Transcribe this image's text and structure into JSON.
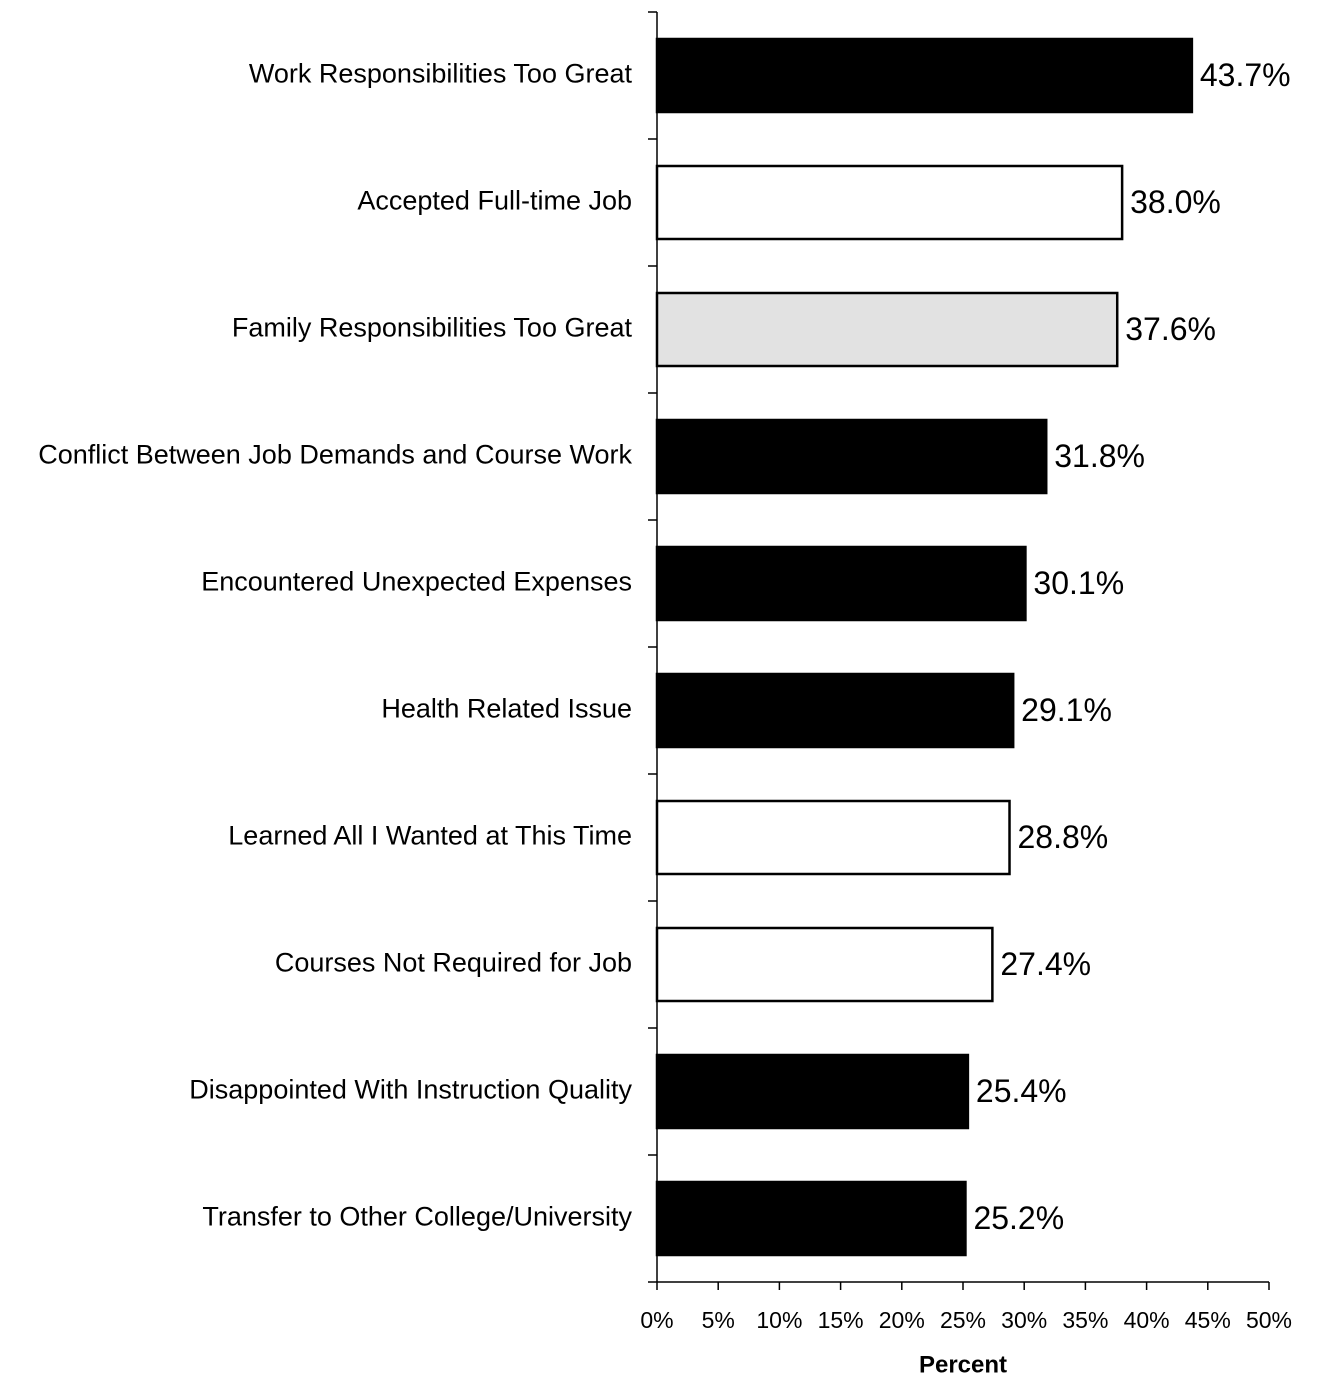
{
  "chart_data": {
    "type": "hbar",
    "categories": [
      "Work Responsibilities Too Great",
      "Accepted Full-time Job",
      "Family Responsibilities Too Great",
      "Conflict Between Job Demands and Course Work",
      "Encountered Unexpected Expenses",
      "Health Related Issue",
      "Learned All I Wanted at This Time",
      "Courses Not Required for Job",
      "Disappointed With Instruction Quality",
      "Transfer to Other College/University"
    ],
    "values": [
      43.7,
      38.0,
      37.6,
      31.8,
      30.1,
      29.1,
      28.8,
      27.4,
      25.4,
      25.2
    ],
    "value_labels": [
      "43.7%",
      "38.0%",
      "37.6%",
      "31.8%",
      "30.1%",
      "29.1%",
      "28.8%",
      "27.4%",
      "25.4%",
      "25.2%"
    ],
    "colors": [
      "#000000",
      "#ffffff",
      "#e2e2e2",
      "#000000",
      "#000000",
      "#000000",
      "#ffffff",
      "#ffffff",
      "#000000",
      "#000000"
    ],
    "xlabel": "Percent",
    "xlim": [
      0,
      50
    ],
    "xticks": [
      {
        "value": 0,
        "label": "0%"
      },
      {
        "value": 5,
        "label": "5%"
      },
      {
        "value": 10,
        "label": "10%"
      },
      {
        "value": 15,
        "label": "15%"
      },
      {
        "value": 20,
        "label": "20%"
      },
      {
        "value": 25,
        "label": "25%"
      },
      {
        "value": 30,
        "label": "30%"
      },
      {
        "value": 35,
        "label": "35%"
      },
      {
        "value": 40,
        "label": "40%"
      },
      {
        "value": 45,
        "label": "45%"
      },
      {
        "value": 50,
        "label": "50%"
      }
    ],
    "grid": false
  }
}
